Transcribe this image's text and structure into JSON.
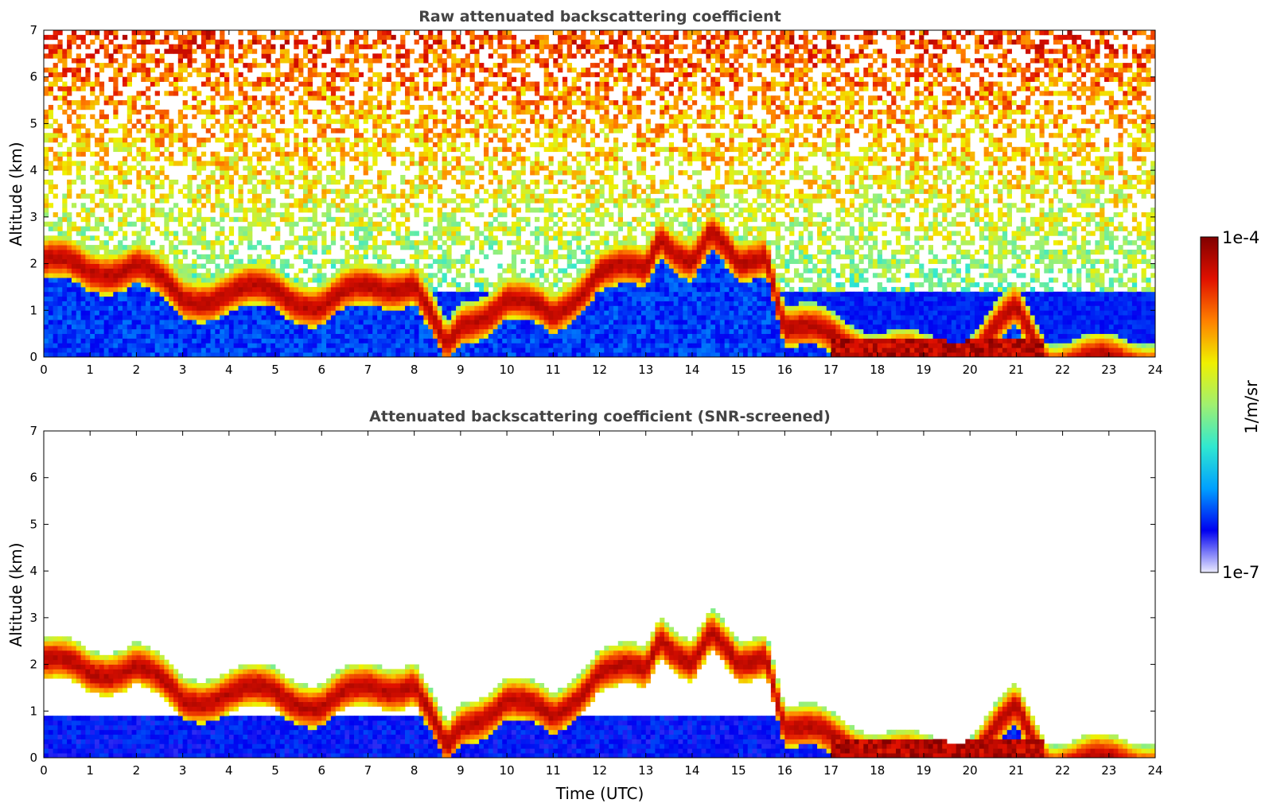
{
  "chart_data": [
    {
      "type": "heatmap",
      "title": "Raw attenuated backscattering coefficient",
      "xlabel": "",
      "ylabel": "Altitude (km)",
      "xlim": [
        0,
        24
      ],
      "ylim": [
        0,
        7
      ],
      "x_ticks": [
        "0",
        "1",
        "2",
        "3",
        "4",
        "5",
        "6",
        "7",
        "8",
        "9",
        "10",
        "11",
        "12",
        "13",
        "14",
        "15",
        "16",
        "17",
        "18",
        "19",
        "20",
        "21",
        "22",
        "23",
        "24"
      ],
      "y_ticks": [
        "0",
        "1",
        "2",
        "3",
        "4",
        "5",
        "6",
        "7"
      ],
      "layer_top_km": {
        "time_utc": [
          0,
          1,
          2,
          3,
          4,
          5,
          6,
          7,
          8,
          8.7,
          9,
          10,
          11,
          12,
          13,
          13.3,
          14,
          14.4,
          15,
          15.6,
          16,
          17,
          18,
          19,
          20,
          21,
          21.7
        ],
        "altitude": [
          2.6,
          2.3,
          2.5,
          1.7,
          1.9,
          1.9,
          1.6,
          2.0,
          2.1,
          0.6,
          1.1,
          1.8,
          1.3,
          2.4,
          2.3,
          3.1,
          2.6,
          3.1,
          2.4,
          2.8,
          1.2,
          0.9,
          0.6,
          0.4,
          0.5,
          1.5,
          0.4
        ]
      },
      "noise_floor_top_km": 1.4
    },
    {
      "type": "heatmap",
      "title": "Attenuated backscattering coefficient (SNR-screened)",
      "xlabel": "Time (UTC)",
      "ylabel": "Altitude (km)",
      "xlim": [
        0,
        24
      ],
      "ylim": [
        0,
        7
      ],
      "x_ticks": [
        "0",
        "1",
        "2",
        "3",
        "4",
        "5",
        "6",
        "7",
        "8",
        "9",
        "10",
        "11",
        "12",
        "13",
        "14",
        "15",
        "16",
        "17",
        "18",
        "19",
        "20",
        "21",
        "22",
        "23",
        "24"
      ],
      "y_ticks": [
        "0",
        "1",
        "2",
        "3",
        "4",
        "5",
        "6",
        "7"
      ],
      "layer_top_km": {
        "time_utc": [
          0,
          1,
          2,
          3,
          4,
          5,
          6,
          7,
          8,
          8.7,
          9,
          10,
          11,
          12,
          13,
          13.3,
          14,
          14.4,
          15,
          15.6,
          16,
          17,
          18,
          19,
          20,
          21,
          21.7
        ],
        "altitude": [
          2.6,
          2.3,
          2.5,
          1.7,
          1.9,
          1.9,
          1.6,
          2.0,
          2.1,
          0.6,
          1.1,
          1.8,
          1.3,
          2.4,
          2.3,
          3.1,
          2.6,
          3.1,
          2.4,
          2.8,
          1.2,
          0.9,
          0.6,
          0.4,
          0.5,
          1.5,
          0.4
        ]
      }
    }
  ],
  "colorbar": {
    "label": "1/m/sr",
    "max_label": "1e-4",
    "min_label": "1e-7",
    "colors": [
      "#ebebff",
      "#0000f0",
      "#00a0ff",
      "#30e8d0",
      "#a0f070",
      "#f0f000",
      "#ff8000",
      "#e01000",
      "#800000"
    ]
  }
}
